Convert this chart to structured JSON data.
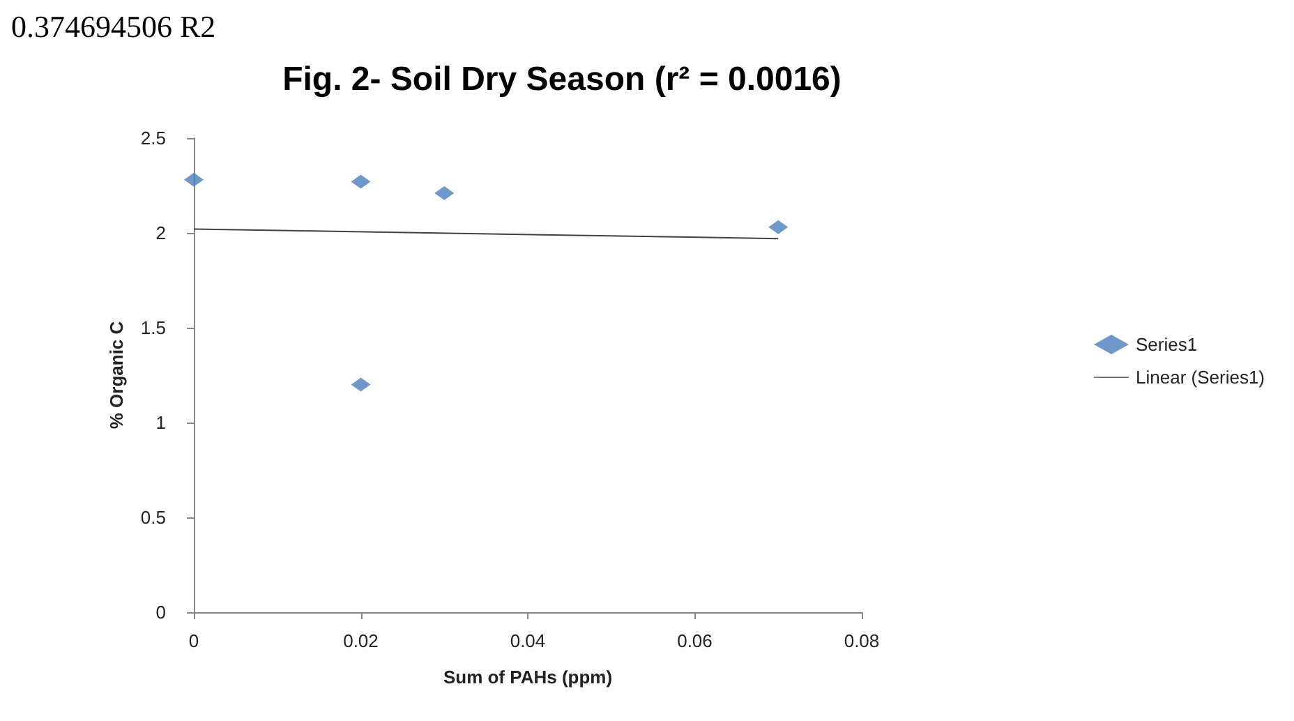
{
  "chart_data": {
    "type": "scatter",
    "title": "Fig. 2- Soil Dry Season (r² = 0.0016)",
    "xlabel": "Sum of PAHs (ppm)",
    "ylabel": "% Organic C",
    "annotations": [
      "0.374694506 R2"
    ],
    "series": [
      {
        "name": "Series1",
        "color": "#4a7ebb",
        "marker": "diamond",
        "x": [
          0,
          0.02,
          0.03,
          0.07,
          0.02
        ],
        "values": [
          2.28,
          2.27,
          2.21,
          2.03,
          1.2
        ]
      },
      {
        "name": "Linear (Series1)",
        "type": "line",
        "color": "#404040",
        "marker": "none",
        "x": [
          0,
          0.07
        ],
        "values": [
          2.02,
          1.97
        ]
      }
    ],
    "xlim": [
      0,
      0.08
    ],
    "xticks": [
      0,
      0.02,
      0.04,
      0.06,
      0.08
    ],
    "ylim": [
      0,
      2.5
    ],
    "yticks": [
      0,
      0.5,
      1,
      1.5,
      2,
      2.5
    ],
    "grid": false,
    "legend": "right"
  }
}
